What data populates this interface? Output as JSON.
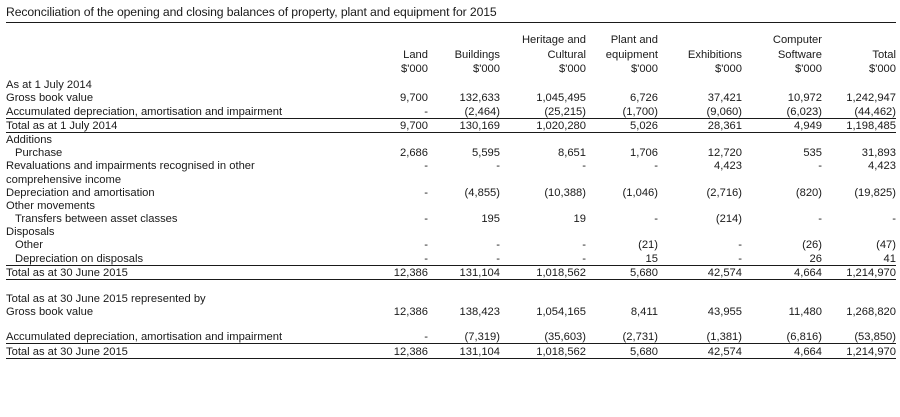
{
  "title": "Reconciliation of the opening and closing balances of property, plant and equipment for 2015",
  "columns": [
    {
      "l1": "",
      "l2": "Land",
      "unit": "$'000"
    },
    {
      "l1": "",
      "l2": "Buildings",
      "unit": "$'000"
    },
    {
      "l1": "Heritage and",
      "l2": "Cultural",
      "unit": "$'000"
    },
    {
      "l1": "Plant and",
      "l2": "equipment",
      "unit": "$'000"
    },
    {
      "l1": "",
      "l2": "Exhibitions",
      "unit": "$'000"
    },
    {
      "l1": "Computer",
      "l2": "Software",
      "unit": "$'000"
    },
    {
      "l1": "",
      "l2": "Total",
      "unit": "$'000"
    }
  ],
  "rows": {
    "as_at": {
      "label": "As at 1 July 2014"
    },
    "gross": {
      "label": "Gross book value",
      "values": [
        "9,700",
        "132,633",
        "1,045,495",
        "6,726",
        "37,421",
        "10,972",
        "1,242,947"
      ]
    },
    "accum": {
      "label": "Accumulated depreciation, amortisation and impairment",
      "values": [
        "-",
        "(2,464)",
        "(25,215)",
        "(1,700)",
        "(9,060)",
        "(6,023)",
        "(44,462)"
      ]
    },
    "total_2014": {
      "label": "Total as at 1 July 2014",
      "values": [
        "9,700",
        "130,169",
        "1,020,280",
        "5,026",
        "28,361",
        "4,949",
        "1,198,485"
      ]
    },
    "additions": {
      "label": "Additions"
    },
    "purchase": {
      "label": "Purchase",
      "values": [
        "2,686",
        "5,595",
        "8,651",
        "1,706",
        "12,720",
        "535",
        "31,893"
      ]
    },
    "reval": {
      "label1": "Revaluations and impairments recognised in other",
      "label2": "comprehensive income",
      "values": [
        "-",
        "-",
        "-",
        "-",
        "4,423",
        "-",
        "4,423"
      ]
    },
    "depr": {
      "label": "Depreciation and amortisation",
      "values": [
        "-",
        "(4,855)",
        "(10,388)",
        "(1,046)",
        "(2,716)",
        "(820)",
        "(19,825)"
      ]
    },
    "other_mov": {
      "label": "Other movements"
    },
    "transfers": {
      "label": "Transfers between asset classes",
      "values": [
        "-",
        "195",
        "19",
        "-",
        "(214)",
        "-",
        "-"
      ]
    },
    "disposals": {
      "label": "Disposals"
    },
    "other": {
      "label": "Other",
      "values": [
        "-",
        "-",
        "-",
        "(21)",
        "-",
        "(26)",
        "(47)"
      ]
    },
    "depr_disp": {
      "label": "Depreciation on disposals",
      "values": [
        "-",
        "-",
        "-",
        "15",
        "-",
        "26",
        "41"
      ]
    },
    "total_2015a": {
      "label": "Total as at 30 June 2015",
      "values": [
        "12,386",
        "131,104",
        "1,018,562",
        "5,680",
        "42,574",
        "4,664",
        "1,214,970"
      ]
    },
    "represented": {
      "label": "Total as at 30 June 2015 represented by"
    },
    "gross2": {
      "label": "Gross book value",
      "values": [
        "12,386",
        "138,423",
        "1,054,165",
        "8,411",
        "43,955",
        "11,480",
        "1,268,820"
      ]
    },
    "accum2": {
      "label": "Accumulated depreciation, amortisation and impairment",
      "values": [
        "-",
        "(7,319)",
        "(35,603)",
        "(2,731)",
        "(1,381)",
        "(6,816)",
        "(53,850)"
      ]
    },
    "total_2015b": {
      "label": "Total as at 30 June 2015",
      "values": [
        "12,386",
        "131,104",
        "1,018,562",
        "5,680",
        "42,574",
        "4,664",
        "1,214,970"
      ]
    }
  }
}
